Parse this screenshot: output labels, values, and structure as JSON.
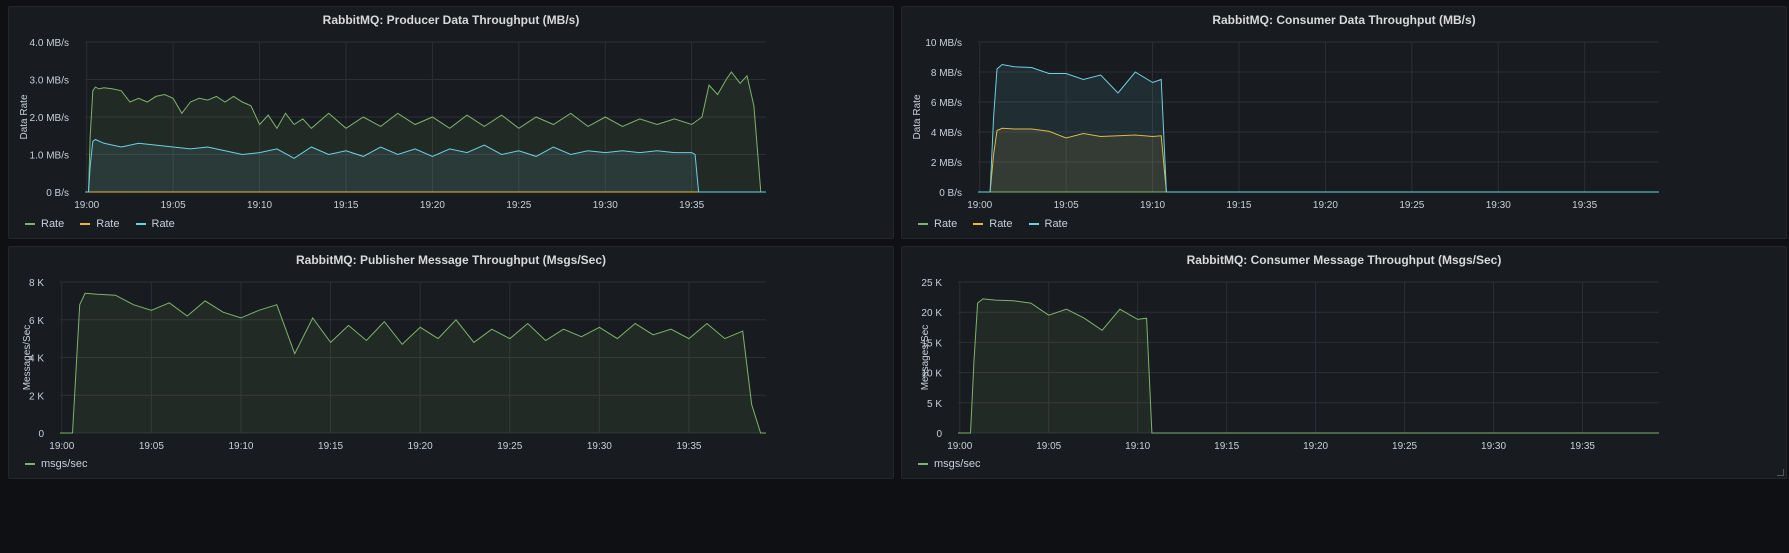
{
  "chart_data": [
    {
      "type": "area",
      "title": "RabbitMQ: Producer Data Throughput (MB/s)",
      "ylabel": "Data Rate",
      "ylim": [
        0,
        4.0
      ],
      "yticks": [
        0,
        1,
        2,
        3,
        4
      ],
      "ytick_labels": [
        "0 B/s",
        "1.0 MB/s",
        "2.0 MB/s",
        "3.0 MB/s",
        "4.0 MB/s"
      ],
      "xlim": [
        18.9,
        58.3
      ],
      "xticks": [
        19.0,
        19.05,
        19.1,
        19.15,
        19.2,
        19.25,
        19.3,
        19.35
      ],
      "xtick_labels": [
        "19:00",
        "19:05",
        "19:10",
        "19:15",
        "19:20",
        "19:25",
        "19:30",
        "19:35"
      ],
      "series": [
        {
          "name": "Rate",
          "color": "#7eb26d",
          "x": [
            18.9,
            19.1,
            19.2,
            19.35,
            19.5,
            19.7,
            20.0,
            20.5,
            21.0,
            21.5,
            22.0,
            22.5,
            23.0,
            23.5,
            24.0,
            24.5,
            25.0,
            25.5,
            26.0,
            26.5,
            27.0,
            27.5,
            28.0,
            28.5,
            29.0,
            29.5,
            30.0,
            30.5,
            31.0,
            31.5,
            32.0,
            33.0,
            34.0,
            35.0,
            36.0,
            37.0,
            38.0,
            39.0,
            40.0,
            41.0,
            42.0,
            43.0,
            44.0,
            45.0,
            46.0,
            47.0,
            48.0,
            49.0,
            50.0,
            51.0,
            52.0,
            53.0,
            54.0,
            54.6,
            55.0,
            55.5,
            56.0,
            56.3,
            56.8,
            57.2,
            57.6,
            58.0,
            58.3
          ],
          "y": [
            0,
            0,
            1.5,
            2.7,
            2.8,
            2.75,
            2.78,
            2.75,
            2.7,
            2.4,
            2.5,
            2.4,
            2.55,
            2.6,
            2.5,
            2.1,
            2.4,
            2.5,
            2.45,
            2.55,
            2.4,
            2.55,
            2.4,
            2.3,
            1.8,
            2.05,
            1.7,
            2.1,
            1.8,
            1.95,
            1.7,
            2.1,
            1.7,
            2.0,
            1.75,
            2.1,
            1.8,
            2.0,
            1.7,
            2.05,
            1.75,
            2.05,
            1.7,
            2.0,
            1.8,
            2.1,
            1.75,
            2.0,
            1.75,
            1.95,
            1.8,
            1.95,
            1.8,
            2.0,
            2.85,
            2.6,
            3.0,
            3.2,
            2.9,
            3.1,
            2.3,
            0,
            0
          ]
        },
        {
          "name": "Rate",
          "color": "#eab839",
          "x": [
            18.9,
            58.3
          ],
          "y": [
            0,
            0
          ]
        },
        {
          "name": "Rate",
          "color": "#6ed0e0",
          "x": [
            18.9,
            19.1,
            19.2,
            19.35,
            19.5,
            20.0,
            21.0,
            22.0,
            23.0,
            24.0,
            25.0,
            26.0,
            27.0,
            28.0,
            29.0,
            30.0,
            31.0,
            32.0,
            33.0,
            34.0,
            35.0,
            36.0,
            37.0,
            38.0,
            39.0,
            40.0,
            41.0,
            42.0,
            43.0,
            44.0,
            45.0,
            46.0,
            47.0,
            48.0,
            49.0,
            50.0,
            51.0,
            52.0,
            53.0,
            54.0,
            54.2,
            54.4,
            58.3
          ],
          "y": [
            0,
            0,
            0.7,
            1.35,
            1.4,
            1.3,
            1.2,
            1.3,
            1.25,
            1.2,
            1.15,
            1.2,
            1.1,
            1.0,
            1.05,
            1.15,
            0.9,
            1.2,
            1.0,
            1.1,
            0.95,
            1.2,
            1.0,
            1.15,
            0.95,
            1.15,
            1.05,
            1.25,
            1.0,
            1.1,
            0.95,
            1.2,
            1.0,
            1.1,
            1.05,
            1.1,
            1.05,
            1.1,
            1.05,
            1.05,
            1.0,
            0,
            0
          ]
        }
      ]
    },
    {
      "type": "area",
      "title": "RabbitMQ: Consumer Data Throughput (MB/s)",
      "ylabel": "Data Rate",
      "ylim": [
        0,
        10
      ],
      "yticks": [
        0,
        2,
        4,
        6,
        8,
        10
      ],
      "ytick_labels": [
        "0 B/s",
        "2 MB/s",
        "4 MB/s",
        "6 MB/s",
        "8 MB/s",
        "10 MB/s"
      ],
      "xlim": [
        18.9,
        58.3
      ],
      "xticks": [
        19.0,
        19.05,
        19.1,
        19.15,
        19.2,
        19.25,
        19.3,
        19.35
      ],
      "xtick_labels": [
        "19:00",
        "19:05",
        "19:10",
        "19:15",
        "19:20",
        "19:25",
        "19:30",
        "19:35"
      ],
      "series": [
        {
          "name": "Rate",
          "color": "#7eb26d",
          "x": [
            18.9,
            58.3
          ],
          "y": [
            0,
            0
          ]
        },
        {
          "name": "Rate",
          "color": "#eab839",
          "x": [
            18.9,
            19.6,
            19.8,
            20.0,
            20.3,
            21.0,
            22.0,
            23.0,
            24.0,
            25.0,
            26.0,
            27.0,
            28.0,
            29.0,
            29.5,
            29.8,
            58.3
          ],
          "y": [
            0,
            0,
            2.5,
            4.1,
            4.25,
            4.2,
            4.2,
            4.05,
            3.6,
            3.9,
            3.7,
            3.75,
            3.8,
            3.7,
            3.75,
            0,
            0
          ]
        },
        {
          "name": "Rate",
          "color": "#6ed0e0",
          "x": [
            18.9,
            19.6,
            19.8,
            20.0,
            20.3,
            21.0,
            22.0,
            23.0,
            24.0,
            25.0,
            26.0,
            27.0,
            28.0,
            29.0,
            29.5,
            29.8,
            58.3
          ],
          "y": [
            0,
            0,
            5,
            8.2,
            8.5,
            8.35,
            8.3,
            7.9,
            7.9,
            7.5,
            7.8,
            6.6,
            8.0,
            7.3,
            7.5,
            0,
            0
          ]
        }
      ]
    },
    {
      "type": "area",
      "title": "RabbitMQ: Publisher Message Throughput (Msgs/Sec)",
      "ylabel": "Messages/Sec",
      "ylim": [
        0,
        8000
      ],
      "yticks": [
        0,
        2000,
        4000,
        6000,
        8000
      ],
      "ytick_labels": [
        "0",
        "2 K",
        "4 K",
        "6 K",
        "8 K"
      ],
      "xlim": [
        18.9,
        58.3
      ],
      "xticks": [
        19.0,
        19.05,
        19.1,
        19.15,
        19.2,
        19.25,
        19.3,
        19.35
      ],
      "xtick_labels": [
        "19:00",
        "19:05",
        "19:10",
        "19:15",
        "19:20",
        "19:25",
        "19:30",
        "19:35"
      ],
      "series": [
        {
          "name": "msgs/sec",
          "color": "#7eb26d",
          "x": [
            18.9,
            19.6,
            20.0,
            20.3,
            21.0,
            22.0,
            23.0,
            24.0,
            25.0,
            26.0,
            27.0,
            28.0,
            29.0,
            30.0,
            31.0,
            32.0,
            33.0,
            34.0,
            35.0,
            36.0,
            37.0,
            38.0,
            39.0,
            40.0,
            41.0,
            42.0,
            43.0,
            44.0,
            45.0,
            46.0,
            47.0,
            48.0,
            49.0,
            50.0,
            51.0,
            52.0,
            53.0,
            54.0,
            55.0,
            56.0,
            57.0,
            57.5,
            58.0,
            58.3
          ],
          "y": [
            0,
            0,
            6800,
            7400,
            7350,
            7300,
            6800,
            6500,
            6900,
            6200,
            7000,
            6400,
            6100,
            6500,
            6800,
            4200,
            6100,
            4800,
            5700,
            4900,
            5900,
            4700,
            5600,
            5000,
            6000,
            4800,
            5500,
            5000,
            5800,
            4900,
            5500,
            5100,
            5600,
            5000,
            5800,
            5200,
            5500,
            5000,
            5800,
            5000,
            5400,
            1500,
            0,
            0
          ]
        }
      ]
    },
    {
      "type": "area",
      "title": "RabbitMQ: Consumer Message Throughput (Msgs/Sec)",
      "ylabel": "Messages/Sec",
      "ylim": [
        0,
        25000
      ],
      "yticks": [
        0,
        5000,
        10000,
        15000,
        20000,
        25000
      ],
      "ytick_labels": [
        "0",
        "5 K",
        "10 K",
        "15 K",
        "20 K",
        "25 K"
      ],
      "xlim": [
        18.9,
        58.3
      ],
      "xticks": [
        19.0,
        19.05,
        19.1,
        19.15,
        19.2,
        19.25,
        19.3,
        19.35
      ],
      "xtick_labels": [
        "19:00",
        "19:05",
        "19:10",
        "19:15",
        "19:20",
        "19:25",
        "19:30",
        "19:35"
      ],
      "series": [
        {
          "name": "msgs/sec",
          "color": "#7eb26d",
          "x": [
            18.9,
            19.6,
            19.8,
            20.0,
            20.3,
            21.0,
            22.0,
            23.0,
            24.0,
            25.0,
            26.0,
            27.0,
            28.0,
            29.0,
            29.5,
            29.8,
            58.3
          ],
          "y": [
            0,
            0,
            12000,
            21500,
            22200,
            22000,
            21900,
            21500,
            19500,
            20500,
            19000,
            17000,
            20500,
            18800,
            19000,
            0,
            0
          ]
        }
      ]
    }
  ],
  "panels": [
    {
      "legend": [
        "Rate",
        "Rate",
        "Rate"
      ]
    },
    {
      "legend": [
        "Rate",
        "Rate",
        "Rate"
      ]
    },
    {
      "legend": [
        "msgs/sec"
      ]
    },
    {
      "legend": [
        "msgs/sec"
      ]
    }
  ]
}
